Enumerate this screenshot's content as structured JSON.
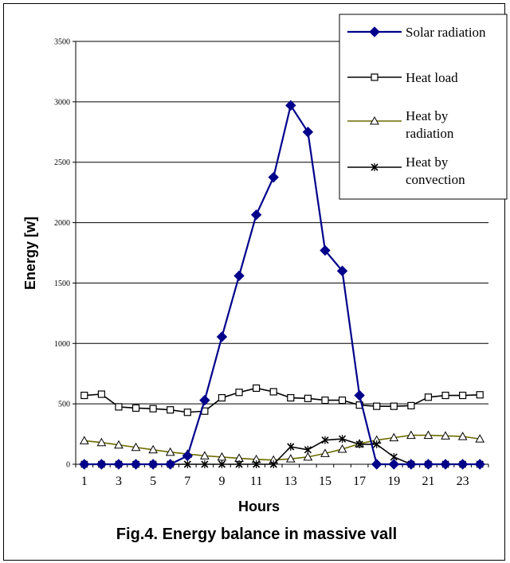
{
  "caption": "Fig.4. Energy balance in massive vall",
  "chart_data": {
    "type": "line",
    "title": "",
    "xlabel": "Hours",
    "ylabel": "Energy [w]",
    "x": [
      1,
      2,
      3,
      4,
      5,
      6,
      7,
      8,
      9,
      10,
      11,
      12,
      13,
      14,
      15,
      16,
      17,
      18,
      19,
      20,
      21,
      22,
      23,
      24
    ],
    "x_tick_labels": [
      "1",
      "3",
      "5",
      "7",
      "9",
      "11",
      "13",
      "15",
      "17",
      "19",
      "21",
      "23"
    ],
    "y_tick_labels": [
      "0",
      "500",
      "1000",
      "1500",
      "2000",
      "2500",
      "3000",
      "3500"
    ],
    "ylim": [
      0,
      3500
    ],
    "grid": "horizontal",
    "legend": "top-right",
    "series": [
      {
        "name": "Solar radiation",
        "color": "#00008b",
        "marker": "diamond-filled",
        "values": [
          0,
          0,
          0,
          0,
          0,
          0,
          70,
          530,
          1055,
          1560,
          2065,
          2375,
          2970,
          2750,
          1770,
          1600,
          570,
          0,
          0,
          0,
          0,
          0,
          0,
          0
        ]
      },
      {
        "name": "Heat load",
        "color": "#000000",
        "marker": "square-open",
        "values": [
          570,
          580,
          475,
          465,
          460,
          450,
          430,
          440,
          550,
          595,
          630,
          600,
          550,
          545,
          530,
          530,
          490,
          480,
          480,
          485,
          555,
          570,
          570,
          575
        ]
      },
      {
        "name": "Heat by radiation",
        "color": "#6b6b00",
        "marker": "triangle-open",
        "legend_lines": [
          "Heat by",
          "radiation"
        ],
        "values": [
          195,
          180,
          160,
          140,
          120,
          100,
          85,
          70,
          60,
          50,
          40,
          35,
          45,
          60,
          90,
          125,
          170,
          200,
          220,
          240,
          240,
          235,
          230,
          210
        ]
      },
      {
        "name": "Heat by convection",
        "color": "#000000",
        "marker": "x-star",
        "legend_lines": [
          "Heat by",
          "convection"
        ],
        "values": [
          0,
          0,
          0,
          0,
          0,
          0,
          0,
          0,
          0,
          0,
          0,
          0,
          145,
          120,
          200,
          210,
          165,
          165,
          60,
          0,
          0,
          0,
          0,
          0
        ]
      }
    ]
  }
}
